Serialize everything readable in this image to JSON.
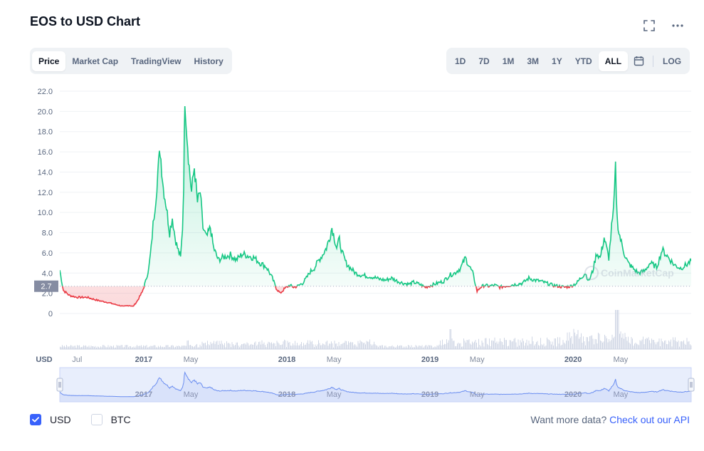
{
  "header": {
    "title": "EOS to USD Chart"
  },
  "tabs": [
    {
      "label": "Price",
      "active": true
    },
    {
      "label": "Market Cap",
      "active": false
    },
    {
      "label": "TradingView",
      "active": false
    },
    {
      "label": "History",
      "active": false
    }
  ],
  "ranges": [
    {
      "label": "1D",
      "active": false
    },
    {
      "label": "7D",
      "active": false
    },
    {
      "label": "1M",
      "active": false
    },
    {
      "label": "3M",
      "active": false
    },
    {
      "label": "1Y",
      "active": false
    },
    {
      "label": "YTD",
      "active": false
    },
    {
      "label": "ALL",
      "active": true
    }
  ],
  "log_label": "LOG",
  "currency_label": "USD",
  "watermark": "CoinMarketCap",
  "current_price_label": "2.7",
  "colors": {
    "up": "#16c784",
    "down": "#ea3943",
    "accent": "#3861fb",
    "volume": "#cfd6e4",
    "navigator": "#6a8df0"
  },
  "chart_data": {
    "type": "area",
    "title": "EOS to USD Chart",
    "y_unit": "USD",
    "ylim": [
      0,
      22.0
    ],
    "y_ticks": [
      "0",
      "2.0",
      "4.0",
      "6.0",
      "8.0",
      "10.0",
      "12.0",
      "14.0",
      "16.0",
      "18.0",
      "20.0",
      "22.0"
    ],
    "baseline": 2.7,
    "x_ticks": [
      "Jul",
      "2017",
      "May",
      "2018",
      "May",
      "2019",
      "May",
      "2020",
      "May"
    ],
    "navigator_ticks": [
      "2017",
      "May",
      "2018",
      "May",
      "2019",
      "May",
      "2020",
      "May"
    ],
    "x_tick_dates": [
      "2016-07-15",
      "2017-01-01",
      "2017-05-01",
      "2018-01-01",
      "2018-05-01",
      "2019-01-01",
      "2019-05-01",
      "2020-01-01",
      "2020-05-01"
    ],
    "grid": true,
    "series": [
      {
        "x": [
          "2016-06-01",
          "2016-06-10",
          "2016-06-25",
          "2016-07-15",
          "2016-08-10",
          "2016-09-05",
          "2016-10-01",
          "2016-10-20",
          "2016-11-10",
          "2016-11-25",
          "2016-12-05",
          "2016-12-15",
          "2016-12-28",
          "2017-01-06",
          "2017-01-14",
          "2017-01-20",
          "2017-01-25",
          "2017-02-01",
          "2017-02-06",
          "2017-02-12",
          "2017-02-20",
          "2017-02-28",
          "2017-03-08",
          "2017-03-15",
          "2017-03-22",
          "2017-03-28",
          "2017-04-05",
          "2017-04-10",
          "2017-04-13",
          "2017-04-16",
          "2017-04-21",
          "2017-04-27",
          "2017-05-03",
          "2017-05-10",
          "2017-05-18",
          "2017-05-25",
          "2017-06-01",
          "2017-06-10",
          "2017-06-20",
          "2017-06-28",
          "2017-07-10",
          "2017-07-25",
          "2017-08-10",
          "2017-08-25",
          "2017-09-10",
          "2017-09-25",
          "2017-10-10",
          "2017-10-25",
          "2017-11-10",
          "2017-11-25",
          "2017-12-05",
          "2017-12-15",
          "2017-12-25",
          "2018-01-08",
          "2018-01-18",
          "2018-01-28",
          "2018-02-10",
          "2018-02-20",
          "2018-03-01",
          "2018-03-12",
          "2018-03-22",
          "2018-04-02",
          "2018-04-12",
          "2018-04-20",
          "2018-04-26",
          "2018-05-02",
          "2018-05-08",
          "2018-05-15",
          "2018-05-22",
          "2018-06-01",
          "2018-06-12",
          "2018-06-25",
          "2018-07-10",
          "2018-07-25",
          "2018-08-10",
          "2018-08-25",
          "2018-09-10",
          "2018-09-25",
          "2018-10-10",
          "2018-10-25",
          "2018-11-10",
          "2018-11-20",
          "2018-12-05",
          "2018-12-20",
          "2019-01-05",
          "2019-01-20",
          "2019-02-05",
          "2019-02-20",
          "2019-03-05",
          "2019-03-20",
          "2019-04-01",
          "2019-04-10",
          "2019-04-20",
          "2019-05-01",
          "2019-05-10",
          "2019-05-20",
          "2019-06-01",
          "2019-06-15",
          "2019-06-28",
          "2019-07-10",
          "2019-07-25",
          "2019-08-10",
          "2019-08-25",
          "2019-09-10",
          "2019-09-25",
          "2019-10-10",
          "2019-10-25",
          "2019-11-10",
          "2019-11-25",
          "2019-12-10",
          "2019-12-25",
          "2020-01-10",
          "2020-01-20",
          "2020-02-01",
          "2020-02-10",
          "2020-02-20",
          "2020-03-01",
          "2020-03-10",
          "2020-03-20",
          "2020-04-01",
          "2020-04-08",
          "2020-04-13",
          "2020-04-18",
          "2020-04-22",
          "2020-04-27",
          "2020-05-03",
          "2020-05-10",
          "2020-05-20",
          "2020-06-01",
          "2020-06-15",
          "2020-07-01",
          "2020-07-15",
          "2020-08-01",
          "2020-08-15",
          "2020-09-01",
          "2020-09-15",
          "2020-10-01",
          "2020-10-15",
          "2020-10-28"
        ],
        "y": [
          4.3,
          2.3,
          1.8,
          1.6,
          1.6,
          1.3,
          1.1,
          0.9,
          0.7,
          0.8,
          0.7,
          1.2,
          2.1,
          3.2,
          4.5,
          6.5,
          8.8,
          11.5,
          14.0,
          16.2,
          12.5,
          10.5,
          8.0,
          9.5,
          7.5,
          6.5,
          5.5,
          8.5,
          13.0,
          21.6,
          18.0,
          14.5,
          12.0,
          14.5,
          11.0,
          12.0,
          8.5,
          7.5,
          8.5,
          6.5,
          5.3,
          5.6,
          5.8,
          5.3,
          5.9,
          5.7,
          5.5,
          5.0,
          4.6,
          3.5,
          2.5,
          2.0,
          2.4,
          2.8,
          2.6,
          2.7,
          3.0,
          3.5,
          4.1,
          4.5,
          5.2,
          5.8,
          6.5,
          7.5,
          8.5,
          7.5,
          6.5,
          7.3,
          6.0,
          5.0,
          4.5,
          4.0,
          3.8,
          3.7,
          3.6,
          3.4,
          3.3,
          3.5,
          3.2,
          3.0,
          2.9,
          3.1,
          2.9,
          2.6,
          2.8,
          3.0,
          3.2,
          3.8,
          4.0,
          4.5,
          5.5,
          4.8,
          4.0,
          2.2,
          2.6,
          2.8,
          2.7,
          2.8,
          2.6,
          2.7,
          2.8,
          2.9,
          3.0,
          3.5,
          3.3,
          3.2,
          3.0,
          2.8,
          2.7,
          2.6,
          2.7,
          3.0,
          3.5,
          4.0,
          3.2,
          4.2,
          6.0,
          5.5,
          7.5,
          5.5,
          8.5,
          10.0,
          14.3,
          9.5,
          8.0,
          7.0,
          6.0,
          5.0,
          4.5,
          4.0,
          4.2,
          5.0,
          4.6,
          6.3,
          5.5,
          4.8,
          4.5,
          4.8,
          5.2
        ]
      }
    ],
    "volume_description_note": ""
  },
  "footer": {
    "usd_label": "USD",
    "usd_checked": true,
    "btc_label": "BTC",
    "btc_checked": false,
    "more_text": "Want more data?",
    "more_link": "Check out our API"
  }
}
